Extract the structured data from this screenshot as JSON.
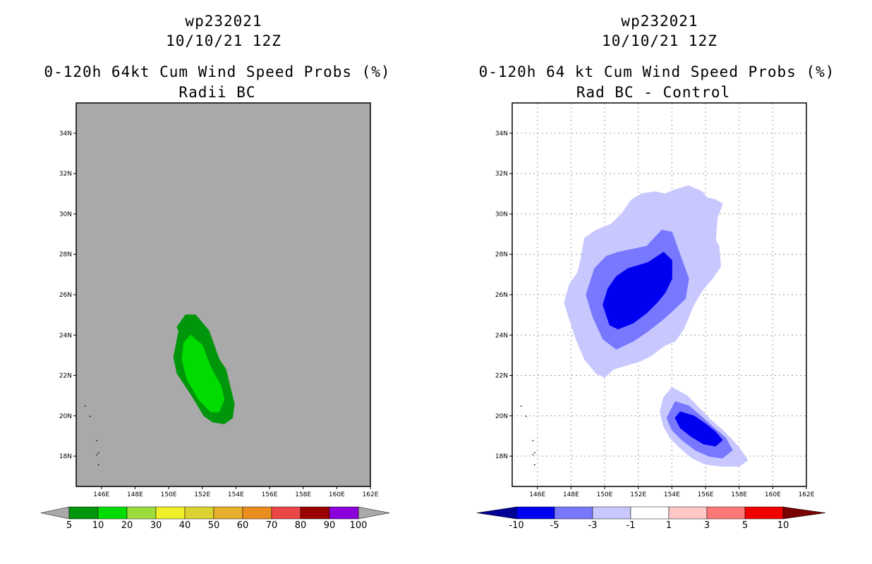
{
  "chart_data": [
    {
      "type": "heatmap",
      "storm_id": "wp232021",
      "datetime": "10/10/21 12Z",
      "title": "0-120h 64kt Cum Wind Speed Probs (%)",
      "subtitle": "Radii BC",
      "xlim": [
        144.5,
        162
      ],
      "ylim": [
        16.5,
        35.5
      ],
      "x_ticks": [
        "146E",
        "148E",
        "150E",
        "152E",
        "154E",
        "156E",
        "158E",
        "160E",
        "162E"
      ],
      "y_ticks": [
        "18N",
        "20N",
        "22N",
        "24N",
        "26N",
        "28N",
        "30N",
        "32N",
        "34N"
      ],
      "grid": false,
      "background": "#a9a9a9",
      "contours": [
        {
          "level": 5,
          "color": "#00960b",
          "lonlat": [
            [
              151.0,
              25.0
            ],
            [
              151.6,
              25.0
            ],
            [
              152.4,
              24.2
            ],
            [
              153.0,
              22.8
            ],
            [
              153.4,
              22.3
            ],
            [
              153.9,
              20.6
            ],
            [
              153.8,
              19.9
            ],
            [
              153.3,
              19.6
            ],
            [
              152.6,
              19.7
            ],
            [
              152.1,
              20.0
            ],
            [
              151.3,
              21.1
            ],
            [
              150.5,
              22.1
            ],
            [
              150.3,
              22.9
            ],
            [
              150.6,
              24.2
            ],
            [
              150.5,
              24.4
            ]
          ]
        },
        {
          "level": 10,
          "color": "#00dc00",
          "lonlat": [
            [
              151.3,
              24.0
            ],
            [
              152.0,
              23.5
            ],
            [
              152.5,
              22.4
            ],
            [
              153.1,
              21.5
            ],
            [
              153.3,
              20.8
            ],
            [
              153.0,
              20.2
            ],
            [
              152.5,
              20.2
            ],
            [
              151.8,
              20.8
            ],
            [
              151.1,
              21.8
            ],
            [
              150.8,
              22.8
            ],
            [
              150.9,
              23.6
            ]
          ]
        }
      ],
      "colorbar": {
        "labels": [
          "5",
          "10",
          "20",
          "30",
          "40",
          "50",
          "60",
          "70",
          "80",
          "90",
          "100"
        ],
        "colors": [
          "#00960b",
          "#00dc00",
          "#9bdc3c",
          "#f0f028",
          "#dcd232",
          "#e6af2d",
          "#eb8c1e",
          "#eb4646",
          "#9b0000",
          "#8c00dc"
        ],
        "end_color": "#a9a9a9"
      }
    },
    {
      "type": "heatmap",
      "storm_id": "wp232021",
      "datetime": "10/10/21 12Z",
      "title": "0-120h 64 kt Cum Wind Speed Probs (%)",
      "subtitle": "Rad BC - Control",
      "xlim": [
        144.5,
        162
      ],
      "ylim": [
        16.5,
        35.5
      ],
      "x_ticks": [
        "146E",
        "148E",
        "150E",
        "152E",
        "154E",
        "156E",
        "158E",
        "160E",
        "162E"
      ],
      "y_ticks": [
        "18N",
        "20N",
        "22N",
        "24N",
        "26N",
        "28N",
        "30N",
        "32N",
        "34N"
      ],
      "grid": true,
      "background": "#ffffff",
      "contours": [
        {
          "level": -1,
          "color": "#c8c8ff",
          "lonlat": [
            [
              150.4,
              29.5
            ],
            [
              151.0,
              30.0
            ],
            [
              151.6,
              30.7
            ],
            [
              152.2,
              31.0
            ],
            [
              153.0,
              31.1
            ],
            [
              153.6,
              31.0
            ],
            [
              154.2,
              31.2
            ],
            [
              155.0,
              31.4
            ],
            [
              155.8,
              31.1
            ],
            [
              156.1,
              30.8
            ],
            [
              156.6,
              30.7
            ],
            [
              157.0,
              30.5
            ],
            [
              156.7,
              29.8
            ],
            [
              156.6,
              28.7
            ],
            [
              156.8,
              28.4
            ],
            [
              156.9,
              27.4
            ],
            [
              156.4,
              26.8
            ],
            [
              155.8,
              26.2
            ],
            [
              155.3,
              25.5
            ],
            [
              154.7,
              24.3
            ],
            [
              154.2,
              23.7
            ],
            [
              153.6,
              23.5
            ],
            [
              152.8,
              23.0
            ],
            [
              152.1,
              22.7
            ],
            [
              151.3,
              22.5
            ],
            [
              150.5,
              22.3
            ],
            [
              150.0,
              21.9
            ],
            [
              149.5,
              22.1
            ],
            [
              148.8,
              22.8
            ],
            [
              148.3,
              23.8
            ],
            [
              147.9,
              24.8
            ],
            [
              147.6,
              25.6
            ],
            [
              147.9,
              26.5
            ],
            [
              148.4,
              27.1
            ],
            [
              148.6,
              27.8
            ],
            [
              148.8,
              28.8
            ],
            [
              149.5,
              29.2
            ]
          ]
        },
        {
          "level": -3,
          "color": "#7878ff",
          "lonlat": [
            [
              152.5,
              28.4
            ],
            [
              153.4,
              29.2
            ],
            [
              154.0,
              29.1
            ],
            [
              154.6,
              27.7
            ],
            [
              155.0,
              26.8
            ],
            [
              154.8,
              25.8
            ],
            [
              154.3,
              25.4
            ],
            [
              153.5,
              24.8
            ],
            [
              152.6,
              24.2
            ],
            [
              151.7,
              23.7
            ],
            [
              150.7,
              23.3
            ],
            [
              149.9,
              23.8
            ],
            [
              149.3,
              24.9
            ],
            [
              148.9,
              26.0
            ],
            [
              149.4,
              27.3
            ],
            [
              150.1,
              27.9
            ],
            [
              150.8,
              28.1
            ]
          ]
        },
        {
          "level": -5,
          "color": "#0000f0",
          "lonlat": [
            [
              152.6,
              27.6
            ],
            [
              153.5,
              28.1
            ],
            [
              154.0,
              27.7
            ],
            [
              154.0,
              26.8
            ],
            [
              153.6,
              26.1
            ],
            [
              153.1,
              25.6
            ],
            [
              152.5,
              25.1
            ],
            [
              151.7,
              24.6
            ],
            [
              150.8,
              24.3
            ],
            [
              150.3,
              24.5
            ],
            [
              149.9,
              25.5
            ],
            [
              150.2,
              26.3
            ],
            [
              150.7,
              26.9
            ],
            [
              151.4,
              27.3
            ]
          ]
        },
        {
          "level": -1,
          "color": "#c8c8ff",
          "lonlat": [
            [
              154.0,
              21.4
            ],
            [
              154.9,
              21.0
            ],
            [
              155.6,
              20.4
            ],
            [
              156.3,
              19.8
            ],
            [
              157.0,
              19.3
            ],
            [
              157.6,
              18.8
            ],
            [
              158.1,
              18.3
            ],
            [
              158.5,
              17.8
            ],
            [
              158.0,
              17.5
            ],
            [
              157.0,
              17.5
            ],
            [
              156.0,
              17.6
            ],
            [
              155.2,
              17.9
            ],
            [
              154.5,
              18.4
            ],
            [
              153.9,
              18.9
            ],
            [
              153.5,
              19.5
            ],
            [
              153.3,
              20.2
            ],
            [
              153.5,
              20.9
            ]
          ]
        },
        {
          "level": -3,
          "color": "#7878ff",
          "lonlat": [
            [
              154.2,
              20.7
            ],
            [
              155.0,
              20.5
            ],
            [
              155.7,
              20.0
            ],
            [
              156.5,
              19.4
            ],
            [
              157.2,
              18.9
            ],
            [
              157.6,
              18.3
            ],
            [
              157.0,
              17.9
            ],
            [
              156.2,
              18.0
            ],
            [
              155.4,
              18.3
            ],
            [
              154.6,
              18.8
            ],
            [
              154.0,
              19.3
            ],
            [
              153.7,
              19.9
            ]
          ]
        },
        {
          "level": -5,
          "color": "#0000f0",
          "lonlat": [
            [
              154.5,
              20.2
            ],
            [
              155.3,
              20.0
            ],
            [
              156.0,
              19.6
            ],
            [
              156.6,
              19.2
            ],
            [
              157.0,
              18.8
            ],
            [
              156.6,
              18.5
            ],
            [
              155.9,
              18.6
            ],
            [
              155.1,
              19.0
            ],
            [
              154.5,
              19.4
            ],
            [
              154.2,
              19.9
            ]
          ]
        }
      ],
      "colorbar": {
        "labels": [
          "-10",
          "-5",
          "-3",
          "-1",
          "1",
          "3",
          "5",
          "10"
        ],
        "colors": [
          "#0000f0",
          "#7878ff",
          "#c8c8ff",
          "#ffffff",
          "#ffc8c8",
          "#ff7878",
          "#f00000"
        ],
        "end_colors": [
          "#000096",
          "#780000"
        ]
      }
    }
  ]
}
